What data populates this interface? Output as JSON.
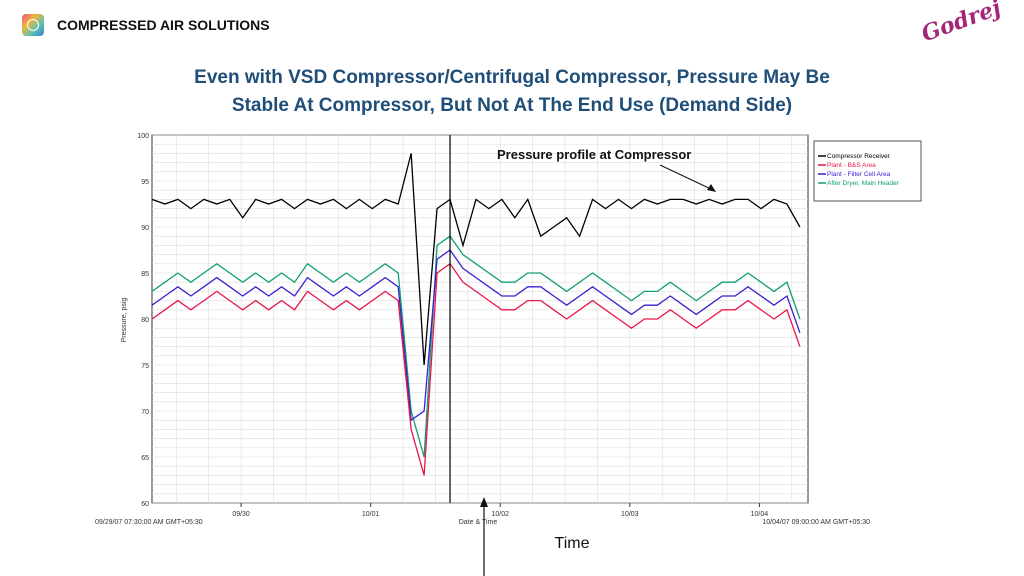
{
  "header": {
    "brand": "COMPRESSED AIR SOLUTIONS",
    "logo_text": "Godrej"
  },
  "slide_title": [
    "Even with VSD Compressor/Centrifugal Compressor, Pressure May Be",
    "Stable At Compressor, But Not At The End Use (Demand Side)"
  ],
  "chart_data": {
    "type": "line",
    "xlabel": "Date & Time",
    "ylabel": "Pressure, psig",
    "ylim": [
      60,
      100
    ],
    "xlim_days": [
      0,
      5.0625
    ],
    "yticks": [
      60,
      65,
      70,
      75,
      80,
      85,
      90,
      95,
      100
    ],
    "xticks": [
      {
        "label": "09/30",
        "day": 0.6875
      },
      {
        "label": "10/01",
        "day": 1.6875
      },
      {
        "label": "10/02",
        "day": 2.6875
      },
      {
        "label": "10/03",
        "day": 3.6875
      },
      {
        "label": "10/04",
        "day": 4.6875
      }
    ],
    "x_start_label": "09/29/07 07:30:00 AM GMT+05:30",
    "x_end_label": "10/04/07 09:00:00 AM GMT+05:30",
    "annotation": "Pressure profile at Compressor",
    "time_label": "Time",
    "x_step_days": 0.1,
    "series": [
      {
        "name": "Compressor Receiver",
        "color": "#000000",
        "values": [
          93,
          92.5,
          93,
          92,
          93,
          92.5,
          93,
          91,
          93,
          92.5,
          93,
          92,
          93,
          92.5,
          93,
          92,
          93,
          92,
          93,
          92.5,
          98,
          75,
          92,
          93,
          88,
          93,
          92,
          93,
          91,
          93,
          89,
          90,
          91,
          89,
          93,
          92,
          93,
          92,
          93,
          92.5,
          93,
          93,
          92.5,
          93,
          92.5,
          93,
          93,
          92,
          93,
          92.5,
          90
        ]
      },
      {
        "name": "Plant - B&S Area",
        "color": "#e8174a",
        "values": [
          80,
          81,
          82,
          81,
          82,
          83,
          82,
          81,
          82,
          81,
          82,
          81,
          83,
          82,
          81,
          82,
          81,
          82,
          83,
          82,
          68,
          63,
          85,
          86,
          84,
          83,
          82,
          81,
          81,
          82,
          82,
          81,
          80,
          81,
          82,
          81,
          80,
          79,
          80,
          80,
          81,
          80,
          79,
          80,
          81,
          81,
          82,
          81,
          80,
          81,
          77
        ]
      },
      {
        "name": "Plant - Filter Cell Area",
        "color": "#3a1fd0",
        "values": [
          81.5,
          82.5,
          83.5,
          82.5,
          83.5,
          84.5,
          83.5,
          82.5,
          83.5,
          82.5,
          83.5,
          82.5,
          84.5,
          83.5,
          82.5,
          83.5,
          82.5,
          83.5,
          84.5,
          83.5,
          69,
          70,
          86.5,
          87.5,
          85.5,
          84.5,
          83.5,
          82.5,
          82.5,
          83.5,
          83.5,
          82.5,
          81.5,
          82.5,
          83.5,
          82.5,
          81.5,
          80.5,
          81.5,
          81.5,
          82.5,
          81.5,
          80.5,
          81.5,
          82.5,
          82.5,
          83.5,
          82.5,
          81.5,
          82.5,
          78.5
        ]
      },
      {
        "name": "After Dryer, Main Header",
        "color": "#10a070",
        "values": [
          83,
          84,
          85,
          84,
          85,
          86,
          85,
          84,
          85,
          84,
          85,
          84,
          86,
          85,
          84,
          85,
          84,
          85,
          86,
          85,
          70,
          65,
          88,
          89,
          87,
          86,
          85,
          84,
          84,
          85,
          85,
          84,
          83,
          84,
          85,
          84,
          83,
          82,
          83,
          83,
          84,
          83,
          82,
          83,
          84,
          84,
          85,
          84,
          83,
          84,
          80
        ]
      }
    ]
  }
}
